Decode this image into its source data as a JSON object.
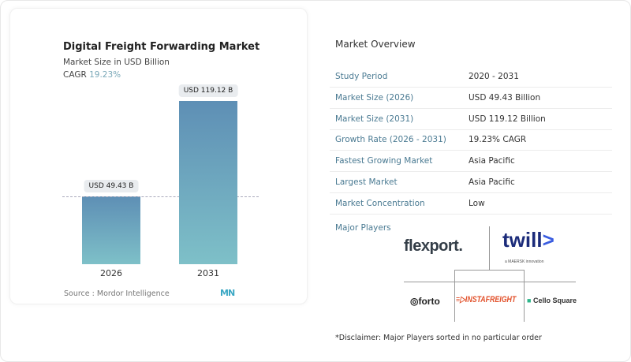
{
  "chart_data": {
    "type": "bar",
    "title": "Digital Freight Forwarding Market",
    "subtitle": "Market Size in USD Billion",
    "cagr_label": "CAGR",
    "cagr_value": "19.23%",
    "categories": [
      "2026",
      "2031"
    ],
    "values": [
      49.43,
      119.12
    ],
    "data_labels": [
      "USD 49.43 B",
      "USD 119.12 B"
    ],
    "colors": [
      "#5e8fb5",
      "#7ec0c8"
    ],
    "source": "Source :  Mordor Intelligence"
  },
  "overview": {
    "title": "Market Overview",
    "rows": [
      {
        "k": "Study Period",
        "v": "2020 - 2031"
      },
      {
        "k": "Market Size (2026)",
        "v": "USD 49.43 Billion"
      },
      {
        "k": "Market Size (2031)",
        "v": "USD 119.12 Billion"
      },
      {
        "k": "Growth Rate (2026 - 2031)",
        "v": "19.23% CAGR"
      },
      {
        "k": "Fastest Growing Market",
        "v": "Asia Pacific"
      },
      {
        "k": "Largest Market",
        "v": "Asia Pacific"
      },
      {
        "k": "Market Concentration",
        "v": "Low"
      }
    ],
    "major_players_label": "Major Players",
    "players": [
      "flexport.",
      "twill",
      "forto",
      "INSTAFREIGHT",
      "Cello Square"
    ],
    "twill_tagline": "a MAERSK innovation",
    "disclaimer": "*Disclaimer: Major Players sorted in no particular order"
  }
}
